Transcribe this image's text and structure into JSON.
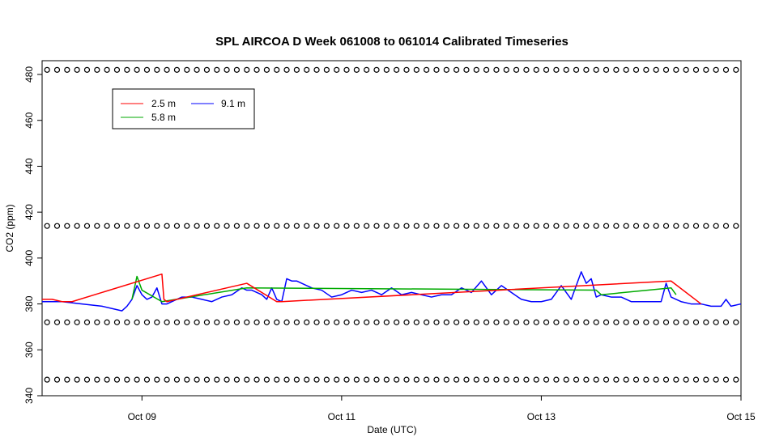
{
  "chart_data": {
    "type": "line",
    "title": "SPL AIRCOA D  Week 061008 to 061014  Calibrated Timeseries",
    "xlabel": "Date (UTC)",
    "ylabel": "CO2 (ppm)",
    "xlim": [
      8.0,
      15.0
    ],
    "ylim": [
      340,
      486
    ],
    "y_ticks": [
      340,
      360,
      380,
      400,
      420,
      440,
      460,
      480
    ],
    "x_ticks": [
      {
        "value": 9,
        "label": "Oct 09"
      },
      {
        "value": 11,
        "label": "Oct 11"
      },
      {
        "value": 13,
        "label": "Oct 13"
      },
      {
        "value": 15,
        "label": "Oct 15"
      }
    ],
    "legend": {
      "position": "top-left",
      "entries": [
        {
          "name": "2.5 m",
          "color": "#ff0000"
        },
        {
          "name": "5.8 m",
          "color": "#00aa00"
        },
        {
          "name": "9.1 m",
          "color": "#0000ff"
        }
      ]
    },
    "series": [
      {
        "name": "9.1 m",
        "color": "#0000ff",
        "x": [
          8.0,
          8.2,
          8.4,
          8.6,
          8.8,
          8.85,
          8.9,
          8.95,
          9.0,
          9.05,
          9.1,
          9.15,
          9.2,
          9.25,
          9.3,
          9.4,
          9.5,
          9.6,
          9.7,
          9.8,
          9.9,
          10.0,
          10.05,
          10.1,
          10.2,
          10.25,
          10.3,
          10.35,
          10.4,
          10.45,
          10.5,
          10.55,
          10.6,
          10.7,
          10.8,
          10.9,
          11.0,
          11.1,
          11.2,
          11.3,
          11.4,
          11.5,
          11.6,
          11.7,
          11.8,
          11.9,
          12.0,
          12.1,
          12.2,
          12.3,
          12.4,
          12.5,
          12.6,
          12.7,
          12.8,
          12.9,
          13.0,
          13.1,
          13.2,
          13.3,
          13.35,
          13.4,
          13.45,
          13.5,
          13.55,
          13.6,
          13.7,
          13.8,
          13.9,
          14.0,
          14.1,
          14.2,
          14.25,
          14.3,
          14.35,
          14.4,
          14.5,
          14.6,
          14.7,
          14.8,
          14.85,
          14.9,
          15.0
        ],
        "values": [
          381,
          381,
          380,
          379,
          377,
          379,
          382,
          388,
          384,
          382,
          383,
          387,
          380,
          380,
          381,
          383,
          383,
          382,
          381,
          383,
          384,
          387,
          386,
          386,
          384,
          382,
          387,
          382,
          381,
          391,
          390,
          390,
          389,
          387,
          386,
          383,
          384,
          386,
          385,
          386,
          384,
          387,
          384,
          385,
          384,
          383,
          384,
          384,
          387,
          385,
          390,
          384,
          388,
          385,
          382,
          381,
          381,
          382,
          388,
          382,
          388,
          394,
          389,
          391,
          383,
          384,
          383,
          383,
          381,
          381,
          381,
          381,
          389,
          383,
          382,
          381,
          380,
          380,
          379,
          379,
          382,
          379,
          380
        ]
      },
      {
        "name": "5.8 m",
        "color": "#00aa00",
        "x": [
          8.9,
          8.95,
          9.0,
          9.2,
          10.05,
          13.55,
          13.6,
          14.3,
          14.35
        ],
        "values": [
          382,
          392,
          386,
          381,
          387,
          386,
          384,
          387,
          384
        ]
      },
      {
        "name": "2.5 m",
        "color": "#ff0000",
        "x": [
          8.0,
          8.1,
          8.2,
          8.3,
          9.2,
          9.22,
          9.25,
          10.05,
          10.35,
          10.4,
          14.3,
          14.6
        ],
        "values": [
          382,
          382,
          381,
          381,
          393,
          382,
          381,
          389,
          381,
          381,
          390,
          380
        ]
      }
    ],
    "marker_rows": [
      {
        "y": 482,
        "count": 70
      },
      {
        "y": 414,
        "count": 70
      },
      {
        "y": 372,
        "count": 70
      },
      {
        "y": 347,
        "count": 70
      }
    ]
  }
}
